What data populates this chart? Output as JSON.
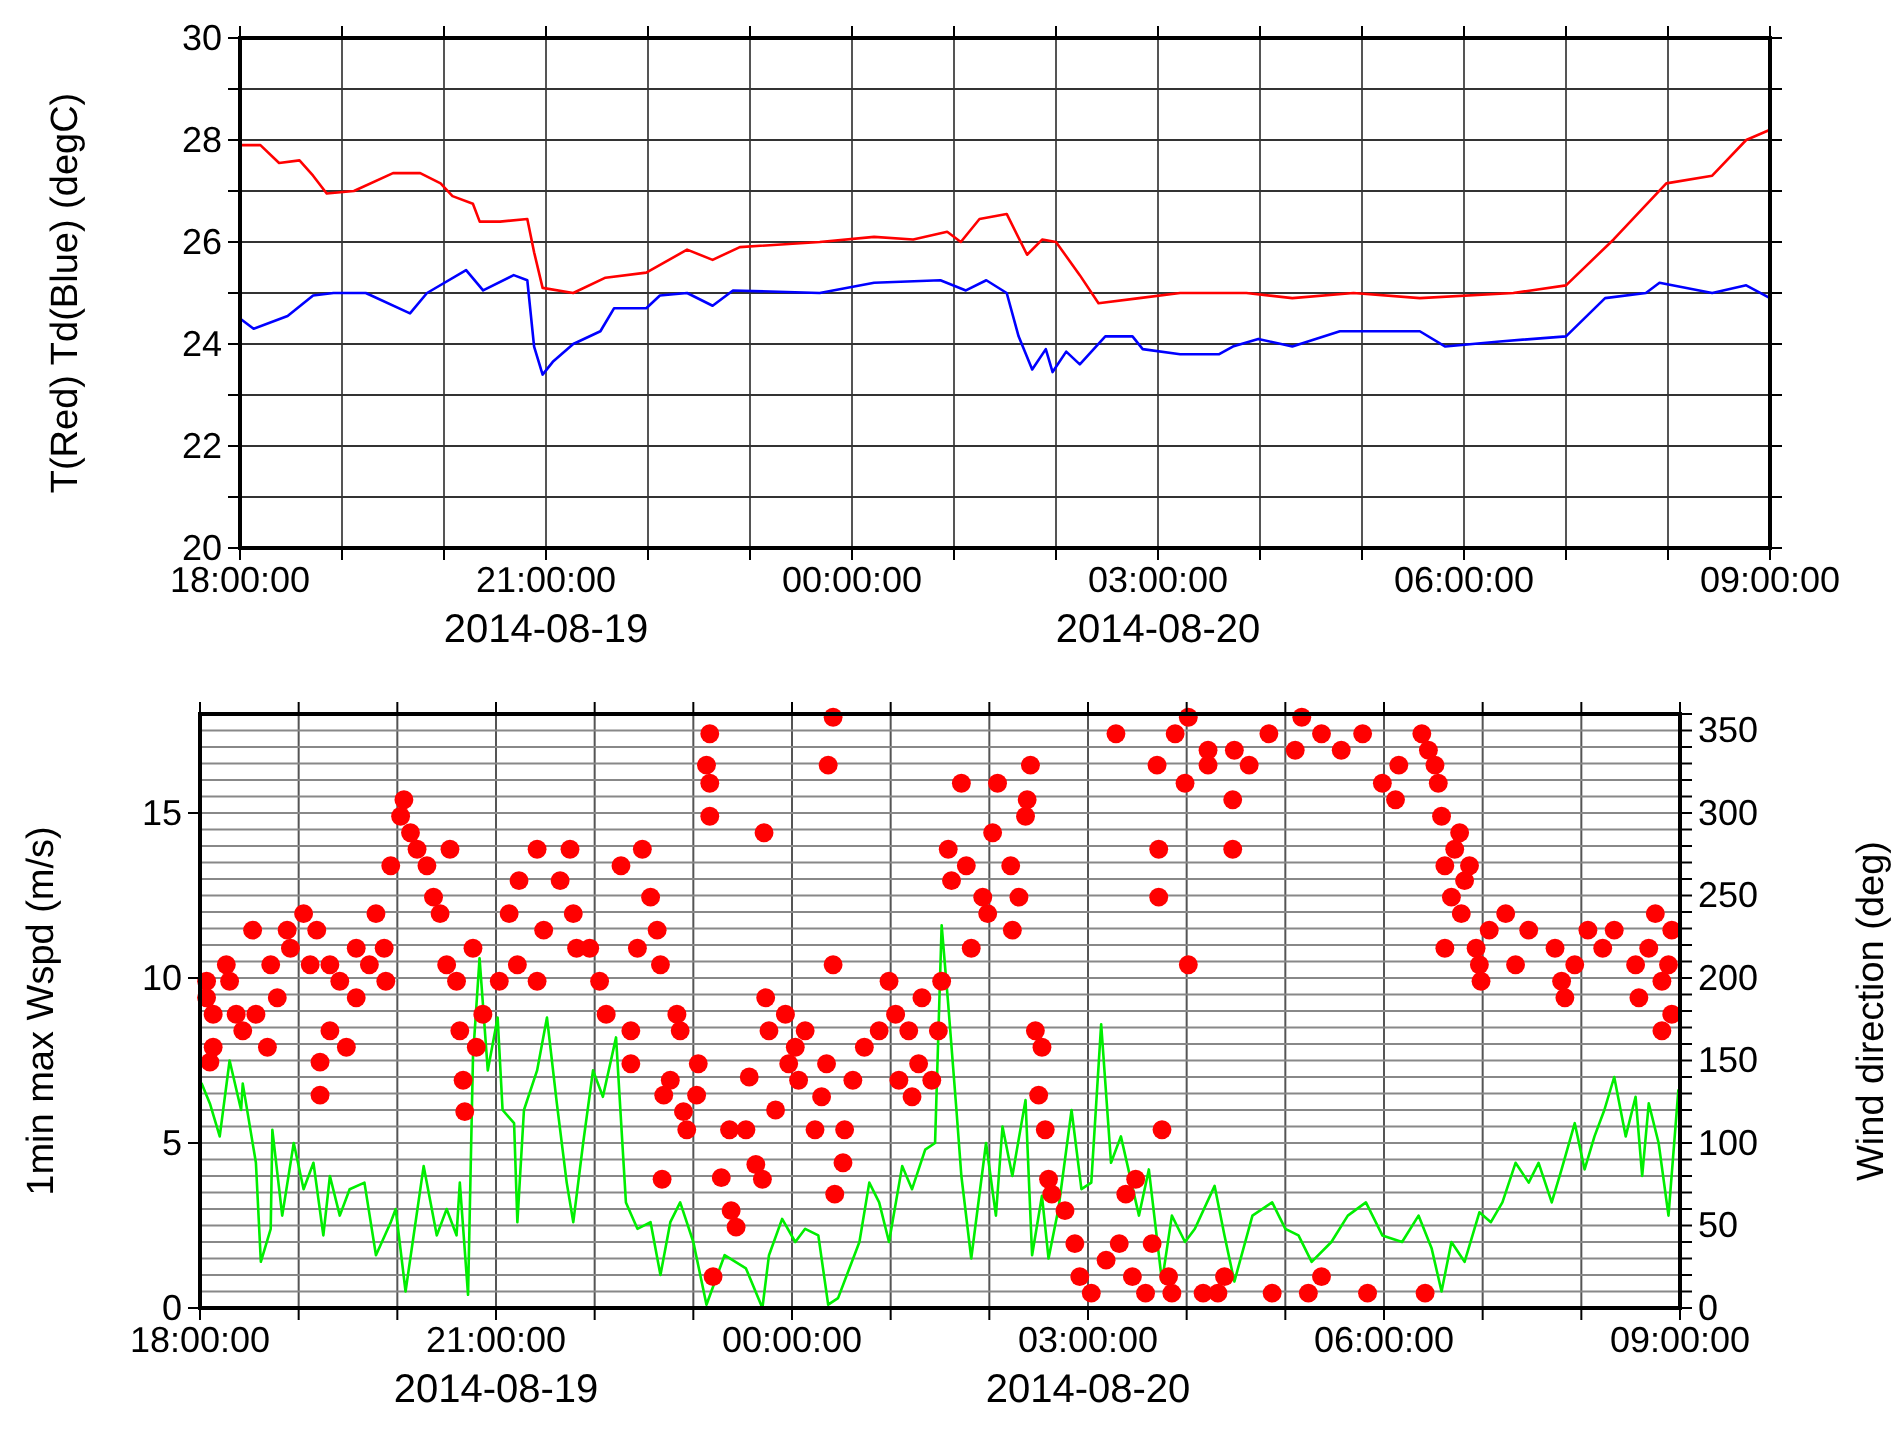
{
  "chart_data": [
    {
      "type": "line",
      "ylabel": "T(Red) Td(Blue) (degC)",
      "grid": true,
      "xlim": [
        "2014-08-19T18:00",
        "2014-08-20T09:00"
      ],
      "xticks": [
        {
          "value": "2014-08-19T18:00",
          "label": "18:00:00"
        },
        {
          "value": "2014-08-19T19:00",
          "label": null
        },
        {
          "value": "2014-08-19T20:00",
          "label": null
        },
        {
          "value": "2014-08-19T21:00",
          "label": "21:00:00\n2014-08-19"
        },
        {
          "value": "2014-08-19T22:00",
          "label": null
        },
        {
          "value": "2014-08-19T23:00",
          "label": null
        },
        {
          "value": "2014-08-20T00:00",
          "label": "00:00:00"
        },
        {
          "value": "2014-08-20T01:00",
          "label": null
        },
        {
          "value": "2014-08-20T02:00",
          "label": null
        },
        {
          "value": "2014-08-20T03:00",
          "label": "03:00:00\n2014-08-20"
        },
        {
          "value": "2014-08-20T04:00",
          "label": null
        },
        {
          "value": "2014-08-20T05:00",
          "label": null
        },
        {
          "value": "2014-08-20T06:00",
          "label": "06:00:00"
        },
        {
          "value": "2014-08-20T07:00",
          "label": null
        },
        {
          "value": "2014-08-20T08:00",
          "label": null
        },
        {
          "value": "2014-08-20T09:00",
          "label": "09:00:00"
        }
      ],
      "ylim": [
        20,
        30
      ],
      "yticks": [
        20,
        {
          "value": 21,
          "label": null
        },
        22,
        {
          "value": 23,
          "label": null
        },
        24,
        {
          "value": 25,
          "label": null
        },
        26,
        {
          "value": 27,
          "label": null
        },
        28,
        {
          "value": 29,
          "label": null
        },
        30
      ],
      "series": [
        {
          "color": "#ff0000",
          "x": [
            "2014-08-19T18:00",
            "2014-08-19T18:12",
            "2014-08-19T18:23",
            "2014-08-19T18:35",
            "2014-08-19T18:43",
            "2014-08-19T18:51",
            "2014-08-19T19:07",
            "2014-08-19T19:30",
            "2014-08-19T19:46",
            "2014-08-19T19:58",
            "2014-08-19T20:05",
            "2014-08-19T20:17",
            "2014-08-19T20:21",
            "2014-08-19T20:33",
            "2014-08-19T20:49",
            "2014-08-19T20:53",
            "2014-08-19T20:58",
            "2014-08-19T21:16",
            "2014-08-19T21:35",
            "2014-08-19T21:59",
            "2014-08-19T22:23",
            "2014-08-19T22:38",
            "2014-08-19T22:54",
            "2014-08-19T23:41",
            "2014-08-20T00:13",
            "2014-08-20T00:36",
            "2014-08-20T00:56",
            "2014-08-20T01:04",
            "2014-08-20T01:15",
            "2014-08-20T01:31",
            "2014-08-20T01:43",
            "2014-08-20T01:52",
            "2014-08-20T02:00",
            "2014-08-20T02:14",
            "2014-08-20T02:25",
            "2014-08-20T02:49",
            "2014-08-20T03:13",
            "2014-08-20T03:52",
            "2014-08-20T04:19",
            "2014-08-20T04:55",
            "2014-08-20T05:34",
            "2014-08-20T06:29",
            "2014-08-20T07:00",
            "2014-08-20T07:28",
            "2014-08-20T07:59",
            "2014-08-20T08:26",
            "2014-08-20T08:46",
            "2014-08-20T09:00"
          ],
          "values": [
            27.9,
            27.9,
            27.55,
            27.6,
            27.3,
            26.95,
            27.0,
            27.35,
            27.35,
            27.15,
            26.9,
            26.75,
            26.4,
            26.4,
            26.45,
            25.8,
            25.1,
            25.0,
            25.3,
            25.4,
            25.85,
            25.65,
            25.9,
            26.0,
            26.1,
            26.05,
            26.2,
            26.0,
            26.45,
            26.55,
            25.75,
            26.05,
            26.0,
            25.35,
            24.8,
            24.9,
            25.0,
            25.0,
            24.9,
            25.0,
            24.9,
            25.0,
            25.15,
            26.05,
            27.15,
            27.3,
            28.0,
            28.2
          ]
        },
        {
          "color": "#0000ff",
          "x": [
            "2014-08-19T18:00",
            "2014-08-19T18:08",
            "2014-08-19T18:28",
            "2014-08-19T18:43",
            "2014-08-19T18:55",
            "2014-08-19T19:14",
            "2014-08-19T19:40",
            "2014-08-19T19:50",
            "2014-08-19T20:13",
            "2014-08-19T20:23",
            "2014-08-19T20:41",
            "2014-08-19T20:49",
            "2014-08-19T20:53",
            "2014-08-19T20:58",
            "2014-08-19T21:04",
            "2014-08-19T21:16",
            "2014-08-19T21:32",
            "2014-08-19T21:40",
            "2014-08-19T21:59",
            "2014-08-19T22:07",
            "2014-08-19T22:23",
            "2014-08-19T22:38",
            "2014-08-19T22:50",
            "2014-08-19T23:41",
            "2014-08-20T00:13",
            "2014-08-20T00:52",
            "2014-08-20T01:07",
            "2014-08-20T01:19",
            "2014-08-20T01:31",
            "2014-08-20T01:38",
            "2014-08-20T01:46",
            "2014-08-20T01:54",
            "2014-08-20T01:58",
            "2014-08-20T02:06",
            "2014-08-20T02:14",
            "2014-08-20T02:29",
            "2014-08-20T02:45",
            "2014-08-20T02:51",
            "2014-08-20T03:13",
            "2014-08-20T03:36",
            "2014-08-20T03:44",
            "2014-08-20T03:59",
            "2014-08-20T04:19",
            "2014-08-20T04:47",
            "2014-08-20T05:34",
            "2014-08-20T05:49",
            "2014-08-20T06:21",
            "2014-08-20T07:00",
            "2014-08-20T07:23",
            "2014-08-20T07:47",
            "2014-08-20T07:55",
            "2014-08-20T08:26",
            "2014-08-20T08:46",
            "2014-08-20T09:00"
          ],
          "values": [
            24.5,
            24.3,
            24.55,
            24.95,
            25.0,
            25.0,
            24.6,
            25.0,
            25.45,
            25.05,
            25.35,
            25.25,
            23.95,
            23.4,
            23.65,
            24.0,
            24.25,
            24.7,
            24.7,
            24.95,
            25.0,
            24.75,
            25.05,
            25.0,
            25.2,
            25.25,
            25.05,
            25.25,
            25.0,
            24.15,
            23.5,
            23.9,
            23.45,
            23.85,
            23.6,
            24.15,
            24.15,
            23.9,
            23.8,
            23.8,
            23.95,
            24.1,
            23.95,
            24.25,
            24.25,
            23.95,
            24.05,
            24.15,
            24.9,
            25.0,
            25.2,
            25.0,
            25.15,
            24.9
          ]
        }
      ]
    },
    {
      "type": "line",
      "ylabel": "1min max Wspd (m/s)",
      "y2label": "Wind direction (deg)",
      "grid": true,
      "xlim": [
        "2014-08-19T18:00",
        "2014-08-20T09:00"
      ],
      "xticks": [
        {
          "value": "2014-08-19T18:00",
          "label": "18:00:00"
        },
        {
          "value": "2014-08-19T19:00",
          "label": null
        },
        {
          "value": "2014-08-19T20:00",
          "label": null
        },
        {
          "value": "2014-08-19T21:00",
          "label": "21:00:00\n2014-08-19"
        },
        {
          "value": "2014-08-19T22:00",
          "label": null
        },
        {
          "value": "2014-08-19T23:00",
          "label": null
        },
        {
          "value": "2014-08-20T00:00",
          "label": "00:00:00"
        },
        {
          "value": "2014-08-20T01:00",
          "label": null
        },
        {
          "value": "2014-08-20T02:00",
          "label": null
        },
        {
          "value": "2014-08-20T03:00",
          "label": "03:00:00\n2014-08-20"
        },
        {
          "value": "2014-08-20T04:00",
          "label": null
        },
        {
          "value": "2014-08-20T05:00",
          "label": null
        },
        {
          "value": "2014-08-20T06:00",
          "label": "06:00:00"
        },
        {
          "value": "2014-08-20T07:00",
          "label": null
        },
        {
          "value": "2014-08-20T08:00",
          "label": null
        },
        {
          "value": "2014-08-20T09:00",
          "label": "09:00:00"
        }
      ],
      "ylim": [
        0,
        18
      ],
      "yticks": [
        0,
        5,
        10,
        15
      ],
      "y2lim": [
        0,
        360
      ],
      "y2ticks": [
        0,
        {
          "value": 10,
          "label": null
        },
        {
          "value": 20,
          "label": null
        },
        {
          "value": 30,
          "label": null
        },
        {
          "value": 40,
          "label": null
        },
        50,
        {
          "value": 60,
          "label": null
        },
        {
          "value": 70,
          "label": null
        },
        {
          "value": 80,
          "label": null
        },
        {
          "value": 90,
          "label": null
        },
        100,
        {
          "value": 110,
          "label": null
        },
        {
          "value": 120,
          "label": null
        },
        {
          "value": 130,
          "label": null
        },
        {
          "value": 140,
          "label": null
        },
        150,
        {
          "value": 160,
          "label": null
        },
        {
          "value": 170,
          "label": null
        },
        {
          "value": 180,
          "label": null
        },
        {
          "value": 190,
          "label": null
        },
        200,
        {
          "value": 210,
          "label": null
        },
        {
          "value": 220,
          "label": null
        },
        {
          "value": 230,
          "label": null
        },
        {
          "value": 240,
          "label": null
        },
        250,
        {
          "value": 260,
          "label": null
        },
        {
          "value": 270,
          "label": null
        },
        {
          "value": 280,
          "label": null
        },
        {
          "value": 290,
          "label": null
        },
        300,
        {
          "value": 310,
          "label": null
        },
        {
          "value": 320,
          "label": null
        },
        {
          "value": 330,
          "label": null
        },
        {
          "value": 340,
          "label": null
        },
        350,
        {
          "value": 360,
          "label": null
        }
      ],
      "series": [
        {
          "color": "#00ee00",
          "x": [
            "2014-08-19T18:01",
            "2014-08-19T18:06",
            "2014-08-19T18:12",
            "2014-08-19T18:18",
            "2014-08-19T18:25",
            "2014-08-19T18:26",
            "2014-08-19T18:34",
            "2014-08-19T18:37",
            "2014-08-19T18:43",
            "2014-08-19T18:44",
            "2014-08-19T18:50",
            "2014-08-19T18:57",
            "2014-08-19T19:03",
            "2014-08-19T19:09",
            "2014-08-19T19:15",
            "2014-08-19T19:19",
            "2014-08-19T19:25",
            "2014-08-19T19:31",
            "2014-08-19T19:40",
            "2014-08-19T19:47",
            "2014-08-19T19:56",
            "2014-08-19T19:59",
            "2014-08-19T20:05",
            "2014-08-19T20:16",
            "2014-08-19T20:24",
            "2014-08-19T20:30",
            "2014-08-19T20:36",
            "2014-08-19T20:38",
            "2014-08-19T20:43",
            "2014-08-19T20:46",
            "2014-08-19T20:50",
            "2014-08-19T20:55",
            "2014-08-19T21:01",
            "2014-08-19T21:04",
            "2014-08-19T21:11",
            "2014-08-19T21:13",
            "2014-08-19T21:17",
            "2014-08-19T21:25",
            "2014-08-19T21:31",
            "2014-08-19T21:37",
            "2014-08-19T21:43",
            "2014-08-19T21:47",
            "2014-08-19T21:53",
            "2014-08-19T21:59",
            "2014-08-19T22:05",
            "2014-08-19T22:13",
            "2014-08-19T22:19",
            "2014-08-19T22:26",
            "2014-08-19T22:34",
            "2014-08-19T22:40",
            "2014-08-19T22:46",
            "2014-08-19T22:52",
            "2014-08-19T23:00",
            "2014-08-19T23:08",
            "2014-08-19T23:19",
            "2014-08-19T23:32",
            "2014-08-19T23:42",
            "2014-08-19T23:46",
            "2014-08-19T23:54",
            "2014-08-20T00:02",
            "2014-08-20T00:08",
            "2014-08-20T00:16",
            "2014-08-20T00:22",
            "2014-08-20T00:28",
            "2014-08-20T00:41",
            "2014-08-20T00:47",
            "2014-08-20T00:53",
            "2014-08-20T00:59",
            "2014-08-20T01:07",
            "2014-08-20T01:13",
            "2014-08-20T01:21",
            "2014-08-20T01:27",
            "2014-08-20T01:31",
            "2014-08-20T01:35",
            "2014-08-20T01:40",
            "2014-08-20T01:43",
            "2014-08-20T01:49",
            "2014-08-20T01:58",
            "2014-08-20T02:04",
            "2014-08-20T02:08",
            "2014-08-20T02:14",
            "2014-08-20T02:22",
            "2014-08-20T02:26",
            "2014-08-20T02:32",
            "2014-08-20T02:36",
            "2014-08-20T02:42",
            "2014-08-20T02:50",
            "2014-08-20T02:56",
            "2014-08-20T03:02",
            "2014-08-20T03:08",
            "2014-08-20T03:14",
            "2014-08-20T03:20",
            "2014-08-20T03:31",
            "2014-08-20T03:37",
            "2014-08-20T03:45",
            "2014-08-20T03:51",
            "2014-08-20T03:59",
            "2014-08-20T04:05",
            "2014-08-20T04:17",
            "2014-08-20T04:23",
            "2014-08-20T04:29",
            "2014-08-20T04:40",
            "2014-08-20T04:52",
            "2014-08-20T05:00",
            "2014-08-20T05:08",
            "2014-08-20T05:16",
            "2014-08-20T05:28",
            "2014-08-20T05:38",
            "2014-08-20T05:49",
            "2014-08-20T05:59",
            "2014-08-20T06:11",
            "2014-08-20T06:21",
            "2014-08-20T06:29",
            "2014-08-20T06:35",
            "2014-08-20T06:41",
            "2014-08-20T06:49",
            "2014-08-20T06:58",
            "2014-08-20T07:05",
            "2014-08-20T07:12",
            "2014-08-20T07:20",
            "2014-08-20T07:28",
            "2014-08-20T07:34",
            "2014-08-20T07:42",
            "2014-08-20T07:48",
            "2014-08-20T07:56",
            "2014-08-20T08:02",
            "2014-08-20T08:08",
            "2014-08-20T08:14",
            "2014-08-20T08:20",
            "2014-08-20T08:27",
            "2014-08-20T08:33",
            "2014-08-20T08:37",
            "2014-08-20T08:41",
            "2014-08-20T08:47",
            "2014-08-20T08:53",
            "2014-08-20T08:59"
          ],
          "values": [
            6.8,
            6.2,
            5.2,
            7.5,
            6.0,
            6.8,
            4.4,
            1.4,
            2.4,
            5.4,
            2.8,
            5.0,
            3.6,
            4.4,
            2.2,
            4.0,
            2.8,
            3.6,
            3.8,
            1.6,
            2.6,
            3.0,
            0.5,
            4.3,
            2.2,
            3.0,
            2.2,
            3.8,
            0.4,
            7.6,
            10.6,
            7.2,
            8.8,
            6.0,
            5.6,
            2.6,
            6.0,
            7.2,
            8.8,
            6.2,
            3.8,
            2.6,
            5.0,
            7.2,
            6.4,
            8.2,
            3.2,
            2.4,
            2.6,
            1.0,
            2.6,
            3.2,
            2.0,
            0.1,
            1.6,
            1.2,
            0.0,
            1.6,
            2.7,
            2.0,
            2.4,
            2.2,
            0.1,
            0.3,
            2.0,
            3.8,
            3.2,
            2.0,
            4.3,
            3.6,
            4.8,
            5.0,
            11.6,
            9.2,
            6.0,
            4.0,
            1.5,
            5.0,
            2.8,
            5.5,
            4.0,
            6.3,
            1.6,
            3.4,
            1.5,
            3.0,
            6.0,
            3.6,
            3.8,
            8.6,
            4.4,
            5.2,
            2.8,
            4.2,
            0.8,
            2.8,
            2.0,
            2.4,
            3.7,
            2.2,
            0.8,
            2.8,
            3.2,
            2.4,
            2.2,
            1.4,
            2.0,
            2.8,
            3.2,
            2.2,
            2.0,
            2.8,
            1.8,
            0.5,
            2.0,
            1.4,
            2.9,
            2.6,
            3.2,
            4.4,
            3.8,
            4.4,
            3.2,
            4.2,
            5.6,
            4.2,
            5.2,
            6.0,
            7.0,
            5.2,
            6.4,
            4.0,
            6.2,
            5.0,
            2.8,
            6.6
          ]
        },
        {
          "type": "scatter",
          "axis": "y2",
          "marker": "circle",
          "color": "#ff0000",
          "x": [
            "2014-08-19T18:04",
            "2014-08-19T18:04",
            "2014-08-19T18:08",
            "2014-08-19T18:08",
            "2014-08-19T18:06",
            "2014-08-19T18:16",
            "2014-08-19T18:18",
            "2014-08-19T18:22",
            "2014-08-19T18:26",
            "2014-08-19T18:32",
            "2014-08-19T18:34",
            "2014-08-19T18:41",
            "2014-08-19T18:43",
            "2014-08-19T18:47",
            "2014-08-19T18:53",
            "2014-08-19T18:55",
            "2014-08-19T19:03",
            "2014-08-19T19:07",
            "2014-08-19T19:11",
            "2014-08-19T19:13",
            "2014-08-19T19:13",
            "2014-08-19T19:19",
            "2014-08-19T19:19",
            "2014-08-19T19:25",
            "2014-08-19T19:29",
            "2014-08-19T19:35",
            "2014-08-19T19:35",
            "2014-08-19T19:43",
            "2014-08-19T19:47",
            "2014-08-19T19:52",
            "2014-08-19T19:53",
            "2014-08-19T19:56",
            "2014-08-19T20:02",
            "2014-08-19T20:04",
            "2014-08-19T20:08",
            "2014-08-19T20:12",
            "2014-08-19T20:18",
            "2014-08-19T20:22",
            "2014-08-19T20:26",
            "2014-08-19T20:32",
            "2014-08-19T20:30",
            "2014-08-19T20:36",
            "2014-08-19T20:38",
            "2014-08-19T20:40",
            "2014-08-19T20:41",
            "2014-08-19T20:46",
            "2014-08-19T20:48",
            "2014-08-19T20:52",
            "2014-08-19T21:02",
            "2014-08-19T21:08",
            "2014-08-19T21:13",
            "2014-08-19T21:14",
            "2014-08-19T21:25",
            "2014-08-19T21:25",
            "2014-08-19T21:29",
            "2014-08-19T21:39",
            "2014-08-19T21:45",
            "2014-08-19T21:47",
            "2014-08-19T21:49",
            "2014-08-19T21:57",
            "2014-08-19T22:03",
            "2014-08-19T22:07",
            "2014-08-19T22:16",
            "2014-08-19T22:22",
            "2014-08-19T22:22",
            "2014-08-19T22:26",
            "2014-08-19T22:29",
            "2014-08-19T22:34",
            "2014-08-19T22:38",
            "2014-08-19T22:40",
            "2014-08-19T22:41",
            "2014-08-19T22:42",
            "2014-08-19T22:46",
            "2014-08-19T22:50",
            "2014-08-19T22:52",
            "2014-08-19T22:54",
            "2014-08-19T22:56",
            "2014-08-19T23:02",
            "2014-08-19T23:03",
            "2014-08-19T23:10",
            "2014-08-19T23:08",
            "2014-08-19T23:10",
            "2014-08-19T23:10",
            "2014-08-19T23:12",
            "2014-08-19T23:17",
            "2014-08-19T23:22",
            "2014-08-19T23:23",
            "2014-08-19T23:26",
            "2014-08-19T23:32",
            "2014-08-19T23:34",
            "2014-08-19T23:38",
            "2014-08-19T23:42",
            "2014-08-19T23:43",
            "2014-08-19T23:44",
            "2014-08-19T23:46",
            "2014-08-19T23:50",
            "2014-08-19T23:56",
            "2014-08-19T23:58",
            "2014-08-20T00:02",
            "2014-08-20T00:04",
            "2014-08-20T00:08",
            "2014-08-20T00:14",
            "2014-08-20T00:18",
            "2014-08-20T00:21",
            "2014-08-20T00:22",
            "2014-08-20T00:25",
            "2014-08-20T00:25",
            "2014-08-20T00:26",
            "2014-08-20T00:31",
            "2014-08-20T00:32",
            "2014-08-20T00:37",
            "2014-08-20T00:44",
            "2014-08-20T00:53",
            "2014-08-20T00:59",
            "2014-08-20T01:03",
            "2014-08-20T01:05",
            "2014-08-20T01:11",
            "2014-08-20T01:13",
            "2014-08-20T01:17",
            "2014-08-20T01:19",
            "2014-08-20T01:25",
            "2014-08-20T01:29",
            "2014-08-20T01:31",
            "2014-08-20T01:35",
            "2014-08-20T01:37",
            "2014-08-20T01:43",
            "2014-08-20T01:46",
            "2014-08-20T01:49",
            "2014-08-20T01:56",
            "2014-08-20T01:59",
            "2014-08-20T02:02",
            "2014-08-20T02:05",
            "2014-08-20T02:13",
            "2014-08-20T02:14",
            "2014-08-20T02:18",
            "2014-08-20T02:22",
            "2014-08-20T02:23",
            "2014-08-20T02:25",
            "2014-08-20T02:28",
            "2014-08-20T02:32",
            "2014-08-20T02:30",
            "2014-08-20T02:34",
            "2014-08-20T02:36",
            "2014-08-20T02:38",
            "2014-08-20T02:46",
            "2014-08-20T02:52",
            "2014-08-20T02:55",
            "2014-08-20T03:02",
            "2014-08-20T03:11",
            "2014-08-20T03:17",
            "2014-08-20T03:19",
            "2014-08-20T03:23",
            "2014-08-20T03:27",
            "2014-08-20T03:29",
            "2014-08-20T03:35",
            "2014-08-20T03:39",
            "2014-08-20T03:42",
            "2014-08-20T03:43",
            "2014-08-20T03:43",
            "2014-08-20T03:45",
            "2014-08-20T03:49",
            "2014-08-20T03:51",
            "2014-08-20T03:53",
            "2014-08-20T03:59",
            "2014-08-20T04:01",
            "2014-08-20T04:01",
            "2014-08-20T04:10",
            "2014-08-20T04:13",
            "2014-08-20T04:13",
            "2014-08-20T04:19",
            "2014-08-20T04:23",
            "2014-08-20T04:28",
            "2014-08-20T04:28",
            "2014-08-20T04:29",
            "2014-08-20T04:38",
            "2014-08-20T04:50",
            "2014-08-20T04:52",
            "2014-08-20T05:06",
            "2014-08-20T05:10",
            "2014-08-20T05:14",
            "2014-08-20T05:22",
            "2014-08-20T05:22",
            "2014-08-20T05:34",
            "2014-08-20T05:47",
            "2014-08-20T05:50",
            "2014-08-20T05:59",
            "2014-08-20T06:07",
            "2014-08-20T06:09",
            "2014-08-20T06:23",
            "2014-08-20T06:25",
            "2014-08-20T06:27",
            "2014-08-20T06:31",
            "2014-08-20T06:33",
            "2014-08-20T06:35",
            "2014-08-20T06:46",
            "2014-08-20T06:37",
            "2014-08-20T06:41",
            "2014-08-20T06:43",
            "2014-08-20T06:49",
            "2014-08-20T06:47",
            "2014-08-20T06:37",
            "2014-08-20T06:52",
            "2014-08-20T06:56",
            "2014-08-20T06:58",
            "2014-08-20T06:59",
            "2014-08-20T07:04",
            "2014-08-20T07:14",
            "2014-08-20T07:20",
            "2014-08-20T07:28",
            "2014-08-20T07:44",
            "2014-08-20T07:48",
            "2014-08-20T07:50",
            "2014-08-20T07:56",
            "2014-08-20T08:04",
            "2014-08-20T08:13",
            "2014-08-20T08:20",
            "2014-08-20T08:33",
            "2014-08-20T08:35",
            "2014-08-20T08:41",
            "2014-08-20T08:45",
            "2014-08-20T08:49",
            "2014-08-20T08:53",
            "2014-08-20T08:55",
            "2014-08-20T08:55",
            "2014-08-20T08:49"
          ],
          "values": [
            198,
            188,
            178,
            158,
            149,
            208,
            198,
            178,
            168,
            229,
            178,
            158,
            208,
            188,
            229,
            218,
            239,
            208,
            229,
            149,
            129,
            208,
            168,
            198,
            158,
            188,
            218,
            208,
            239,
            218,
            198,
            268,
            298,
            308,
            288,
            278,
            268,
            249,
            239,
            278,
            208,
            198,
            168,
            138,
            119,
            218,
            158,
            178,
            198,
            239,
            208,
            259,
            278,
            198,
            229,
            259,
            278,
            239,
            218,
            218,
            198,
            178,
            268,
            148,
            168,
            218,
            278,
            249,
            229,
            208,
            78,
            129,
            138,
            178,
            168,
            119,
            108,
            129,
            148,
            348,
            329,
            318,
            298,
            19,
            79,
            108,
            59,
            49,
            108,
            140,
            87,
            78,
            288,
            188,
            168,
            120,
            178,
            148,
            158,
            138,
            168,
            108,
            128,
            148,
            329,
            358,
            208,
            69,
            88,
            108,
            138,
            158,
            168,
            198,
            178,
            138,
            168,
            128,
            148,
            188,
            138,
            168,
            198,
            278,
            259,
            318,
            268,
            218,
            249,
            239,
            288,
            318,
            268,
            229,
            249,
            298,
            308,
            329,
            168,
            158,
            129,
            108,
            78,
            69,
            59,
            39,
            19,
            9,
            29,
            348,
            39,
            69,
            19,
            78,
            9,
            39,
            329,
            278,
            249,
            108,
            19,
            9,
            348,
            318,
            208,
            358,
            9,
            338,
            329,
            9,
            19,
            308,
            278,
            338,
            329,
            348,
            9,
            338,
            358,
            9,
            348,
            19,
            338,
            348,
            9,
            318,
            308,
            329,
            348,
            9,
            338,
            329,
            318,
            298,
            288,
            268,
            249,
            278,
            259,
            239,
            218,
            268,
            218,
            208,
            198,
            229,
            239,
            208,
            229,
            218,
            198,
            188,
            208,
            229,
            218,
            229,
            208,
            188,
            218,
            239,
            198,
            208,
            229,
            178,
            168
          ]
        }
      ]
    }
  ]
}
